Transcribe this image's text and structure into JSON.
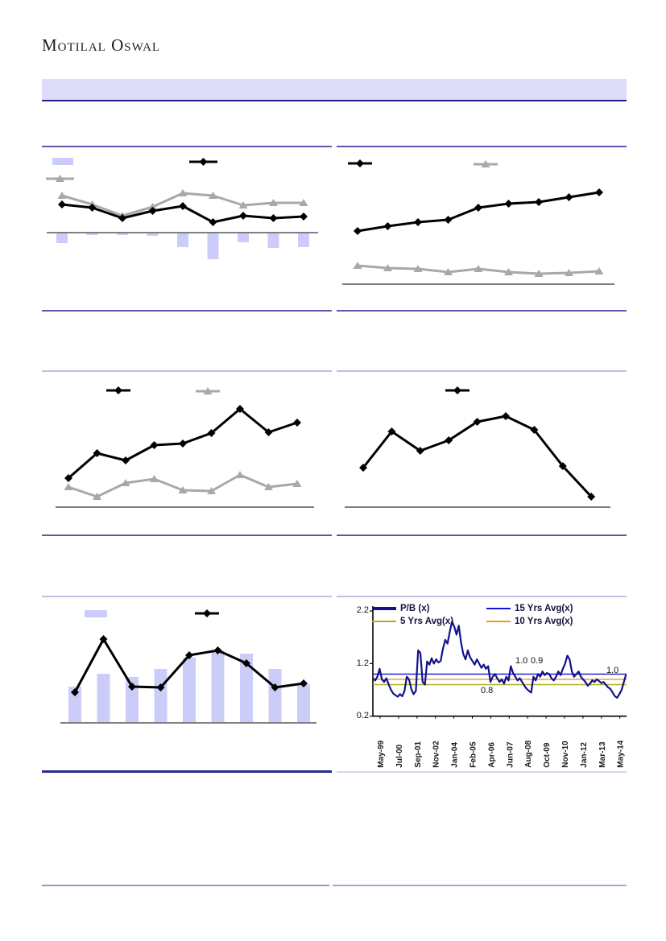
{
  "header": {
    "logo_text": "Motilal Oswal",
    "banner_text": ""
  },
  "colors": {
    "bar_fill": "#ccccf8",
    "line_black": "#000000",
    "line_gray": "#a8a8a8",
    "axis_gray": "#7f7f7f",
    "banner_fill": "#dedcf8",
    "banner_border": "#23207f",
    "divider_medium": "#6153a7",
    "divider_light": "#c4bfe2",
    "divider_dark": "#2b2b8f",
    "pnb_navy": "#12128c",
    "avg15_blue": "#1414d2",
    "avg10_orange": "#f79420",
    "avg5_green": "#a6b31e"
  },
  "chart_data": [
    {
      "type": "bar",
      "subtype": "combo-bars-below-axis-with-two-lines",
      "title": "",
      "x_count": 9,
      "units": "relative-estimate (axis labels not rendered in source image)",
      "series": [
        {
          "name": "bars",
          "kind": "bar",
          "color": "#ccccf8",
          "values": [
            -13,
            -3,
            -3,
            -4,
            -18,
            -33,
            -12,
            -19,
            -18
          ]
        },
        {
          "name": "gray-triangle-line",
          "kind": "line",
          "marker": "triangle",
          "color": "#a8a8a8",
          "values": [
            46,
            35,
            21,
            32,
            49,
            46,
            34,
            37,
            37
          ]
        },
        {
          "name": "black-diamond-line",
          "kind": "line",
          "marker": "diamond",
          "color": "#000000",
          "values": [
            35,
            31,
            18,
            27,
            33,
            13,
            21,
            18,
            20
          ]
        }
      ]
    },
    {
      "type": "line",
      "subtype": "two-lines",
      "title": "",
      "x_count": 9,
      "units": "relative-estimate (axis labels not rendered in source image)",
      "series": [
        {
          "name": "black-diamond-line",
          "kind": "line",
          "marker": "diamond",
          "color": "#000000",
          "values": [
            66,
            72,
            77,
            80,
            95,
            100,
            102,
            108,
            114
          ]
        },
        {
          "name": "gray-triangle-line",
          "kind": "line",
          "marker": "triangle",
          "color": "#a8a8a8",
          "values": [
            23,
            20,
            19,
            15,
            19,
            15,
            13,
            14,
            16
          ]
        }
      ]
    },
    {
      "type": "line",
      "subtype": "two-lines",
      "title": "",
      "x_count": 9,
      "units": "relative-estimate (axis labels not rendered in source image)",
      "series": [
        {
          "name": "black-diamond-line",
          "kind": "line",
          "marker": "diamond",
          "color": "#000000",
          "values": [
            36,
            67,
            58,
            77,
            79,
            92,
            122,
            93,
            105
          ]
        },
        {
          "name": "gray-triangle-line",
          "kind": "line",
          "marker": "triangle",
          "color": "#a8a8a8",
          "values": [
            25,
            13,
            30,
            35,
            21,
            20,
            40,
            25,
            29
          ]
        }
      ]
    },
    {
      "type": "line",
      "subtype": "single-line",
      "title": "",
      "x_count": 9,
      "units": "relative-estimate (axis labels not rendered in source image)",
      "series": [
        {
          "name": "black-diamond-line",
          "kind": "line",
          "marker": "diamond",
          "color": "#000000",
          "values": [
            49,
            94,
            70,
            83,
            106,
            113,
            96,
            51,
            13
          ]
        }
      ]
    },
    {
      "type": "bar",
      "subtype": "combo-bars-with-line",
      "title": "",
      "x_count": 9,
      "units": "relative-estimate (axis labels not rendered in source image)",
      "series": [
        {
          "name": "bars",
          "kind": "bar",
          "color": "#ccccf8",
          "values": [
            45,
            61,
            57,
            67,
            81,
            90,
            86,
            67,
            48
          ]
        },
        {
          "name": "black-diamond-line",
          "kind": "line",
          "marker": "diamond",
          "color": "#000000",
          "values": [
            38,
            104,
            45,
            44,
            84,
            90,
            74,
            44,
            49
          ]
        }
      ]
    },
    {
      "type": "line",
      "subtype": "pb-valuation-chart",
      "title": "",
      "ylim": [
        0.2,
        2.2
      ],
      "yticks": [
        "2.2",
        "1.2",
        "0.2"
      ],
      "xlabels": [
        "May-99",
        "Jul-00",
        "Sep-01",
        "Nov-02",
        "Jan-04",
        "Feb-05",
        "Apr-06",
        "Jun-07",
        "Aug-08",
        "Oct-09",
        "Nov-10",
        "Jan-12",
        "Mar-13",
        "May-14"
      ],
      "legend": [
        {
          "label": "P/B (x)",
          "color": "#12128c",
          "thick": true
        },
        {
          "label": "15 Yrs Avg(x)",
          "color": "#1414d2",
          "thick": false
        },
        {
          "label": "5 Yrs Avg(x)",
          "color": "#a6b31e",
          "thick": false
        },
        {
          "label": "10 Yrs Avg(x)",
          "color": "#f79420",
          "thick": false
        }
      ],
      "avg_lines": [
        {
          "name": "15-yrs-avg",
          "value": 1.0,
          "color": "#1414d2"
        },
        {
          "name": "10-yrs-avg",
          "value": 0.9,
          "color": "#f79420"
        },
        {
          "name": "5-yrs-avg",
          "value": 0.8,
          "color": "#a6b31e"
        }
      ],
      "annotations": [
        {
          "text": "1.0"
        },
        {
          "text": "0.9"
        },
        {
          "text": "0.8"
        },
        {
          "text": "1.0"
        }
      ],
      "pb_values": [
        0.92,
        0.88,
        0.95,
        1.1,
        0.9,
        0.85,
        0.92,
        0.8,
        0.7,
        0.63,
        0.6,
        0.57,
        0.62,
        0.58,
        0.68,
        0.95,
        0.9,
        0.72,
        0.62,
        0.68,
        1.45,
        1.4,
        0.85,
        0.8,
        1.24,
        1.18,
        1.3,
        1.2,
        1.28,
        1.22,
        1.25,
        1.48,
        1.65,
        1.58,
        1.8,
        2.0,
        1.9,
        1.75,
        1.92,
        1.6,
        1.38,
        1.28,
        1.45,
        1.32,
        1.25,
        1.18,
        1.28,
        1.2,
        1.12,
        1.18,
        1.1,
        1.15,
        0.85,
        0.95,
        1.0,
        0.92,
        0.85,
        0.9,
        0.82,
        0.95,
        0.88,
        1.15,
        1.02,
        0.95,
        0.88,
        0.92,
        0.85,
        0.78,
        0.72,
        0.68,
        0.65,
        0.95,
        0.88,
        1.0,
        0.95,
        1.05,
        0.98,
        1.02,
        1.0,
        0.92,
        0.88,
        0.95,
        1.05,
        0.98,
        1.1,
        1.2,
        1.35,
        1.28,
        1.05,
        0.95,
        1.0,
        1.05,
        0.95,
        0.9,
        0.85,
        0.78,
        0.82,
        0.88,
        0.85,
        0.9,
        0.87,
        0.83,
        0.85,
        0.8,
        0.75,
        0.72,
        0.65,
        0.58,
        0.55,
        0.62,
        0.7,
        0.85,
        1.0
      ]
    }
  ]
}
